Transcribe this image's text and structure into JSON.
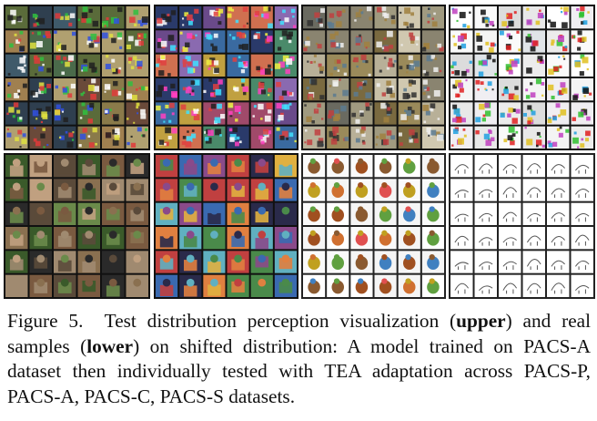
{
  "figure": {
    "caption": {
      "label": "Figure 5.",
      "text_1": "Test distribution perception visualization (",
      "bold_1": "upper",
      "text_2": ") and real samples (",
      "bold_2": "lower",
      "text_3": ") on shifted distribution:  A model trained on PACS-A dataset then individually tested with TEA adaptation across PACS-P, PACS-A, PACS-C, PACS-S datasets."
    }
  }
}
